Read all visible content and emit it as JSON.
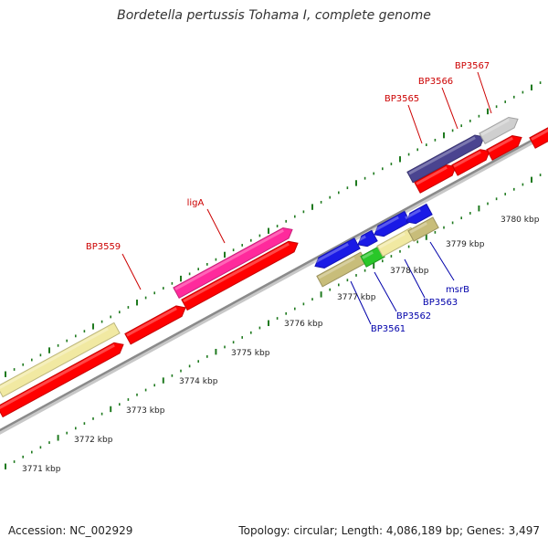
{
  "title": "Bordetella pertussis Tohama I, complete genome",
  "footer": {
    "accession": "Accession: NC_002929",
    "stats": "Topology: circular; Length: 4,086,189 bp; Genes: 3,497"
  },
  "colors": {
    "backbone": "#8a8a8a",
    "tick": "#1f7a1f",
    "forward_label": "#cc0000",
    "reverse_label": "#0000aa",
    "cds": "#ff0000"
  },
  "scale_labels": [
    "3771 kbp",
    "3772 kbp",
    "3773 kbp",
    "3774 kbp",
    "3775 kbp",
    "3776 kbp",
    "3777 kbp",
    "3778 kbp",
    "3779 kbp",
    "3780 kbp"
  ],
  "forward_labels": [
    {
      "text": "BP3559"
    },
    {
      "text": "ligA"
    },
    {
      "text": "BP3565"
    },
    {
      "text": "BP3566"
    },
    {
      "text": "BP3567"
    }
  ],
  "reverse_labels": [
    {
      "text": "BP3561"
    },
    {
      "text": "BP3562"
    },
    {
      "text": "BP3563"
    },
    {
      "text": "msrB"
    }
  ]
}
